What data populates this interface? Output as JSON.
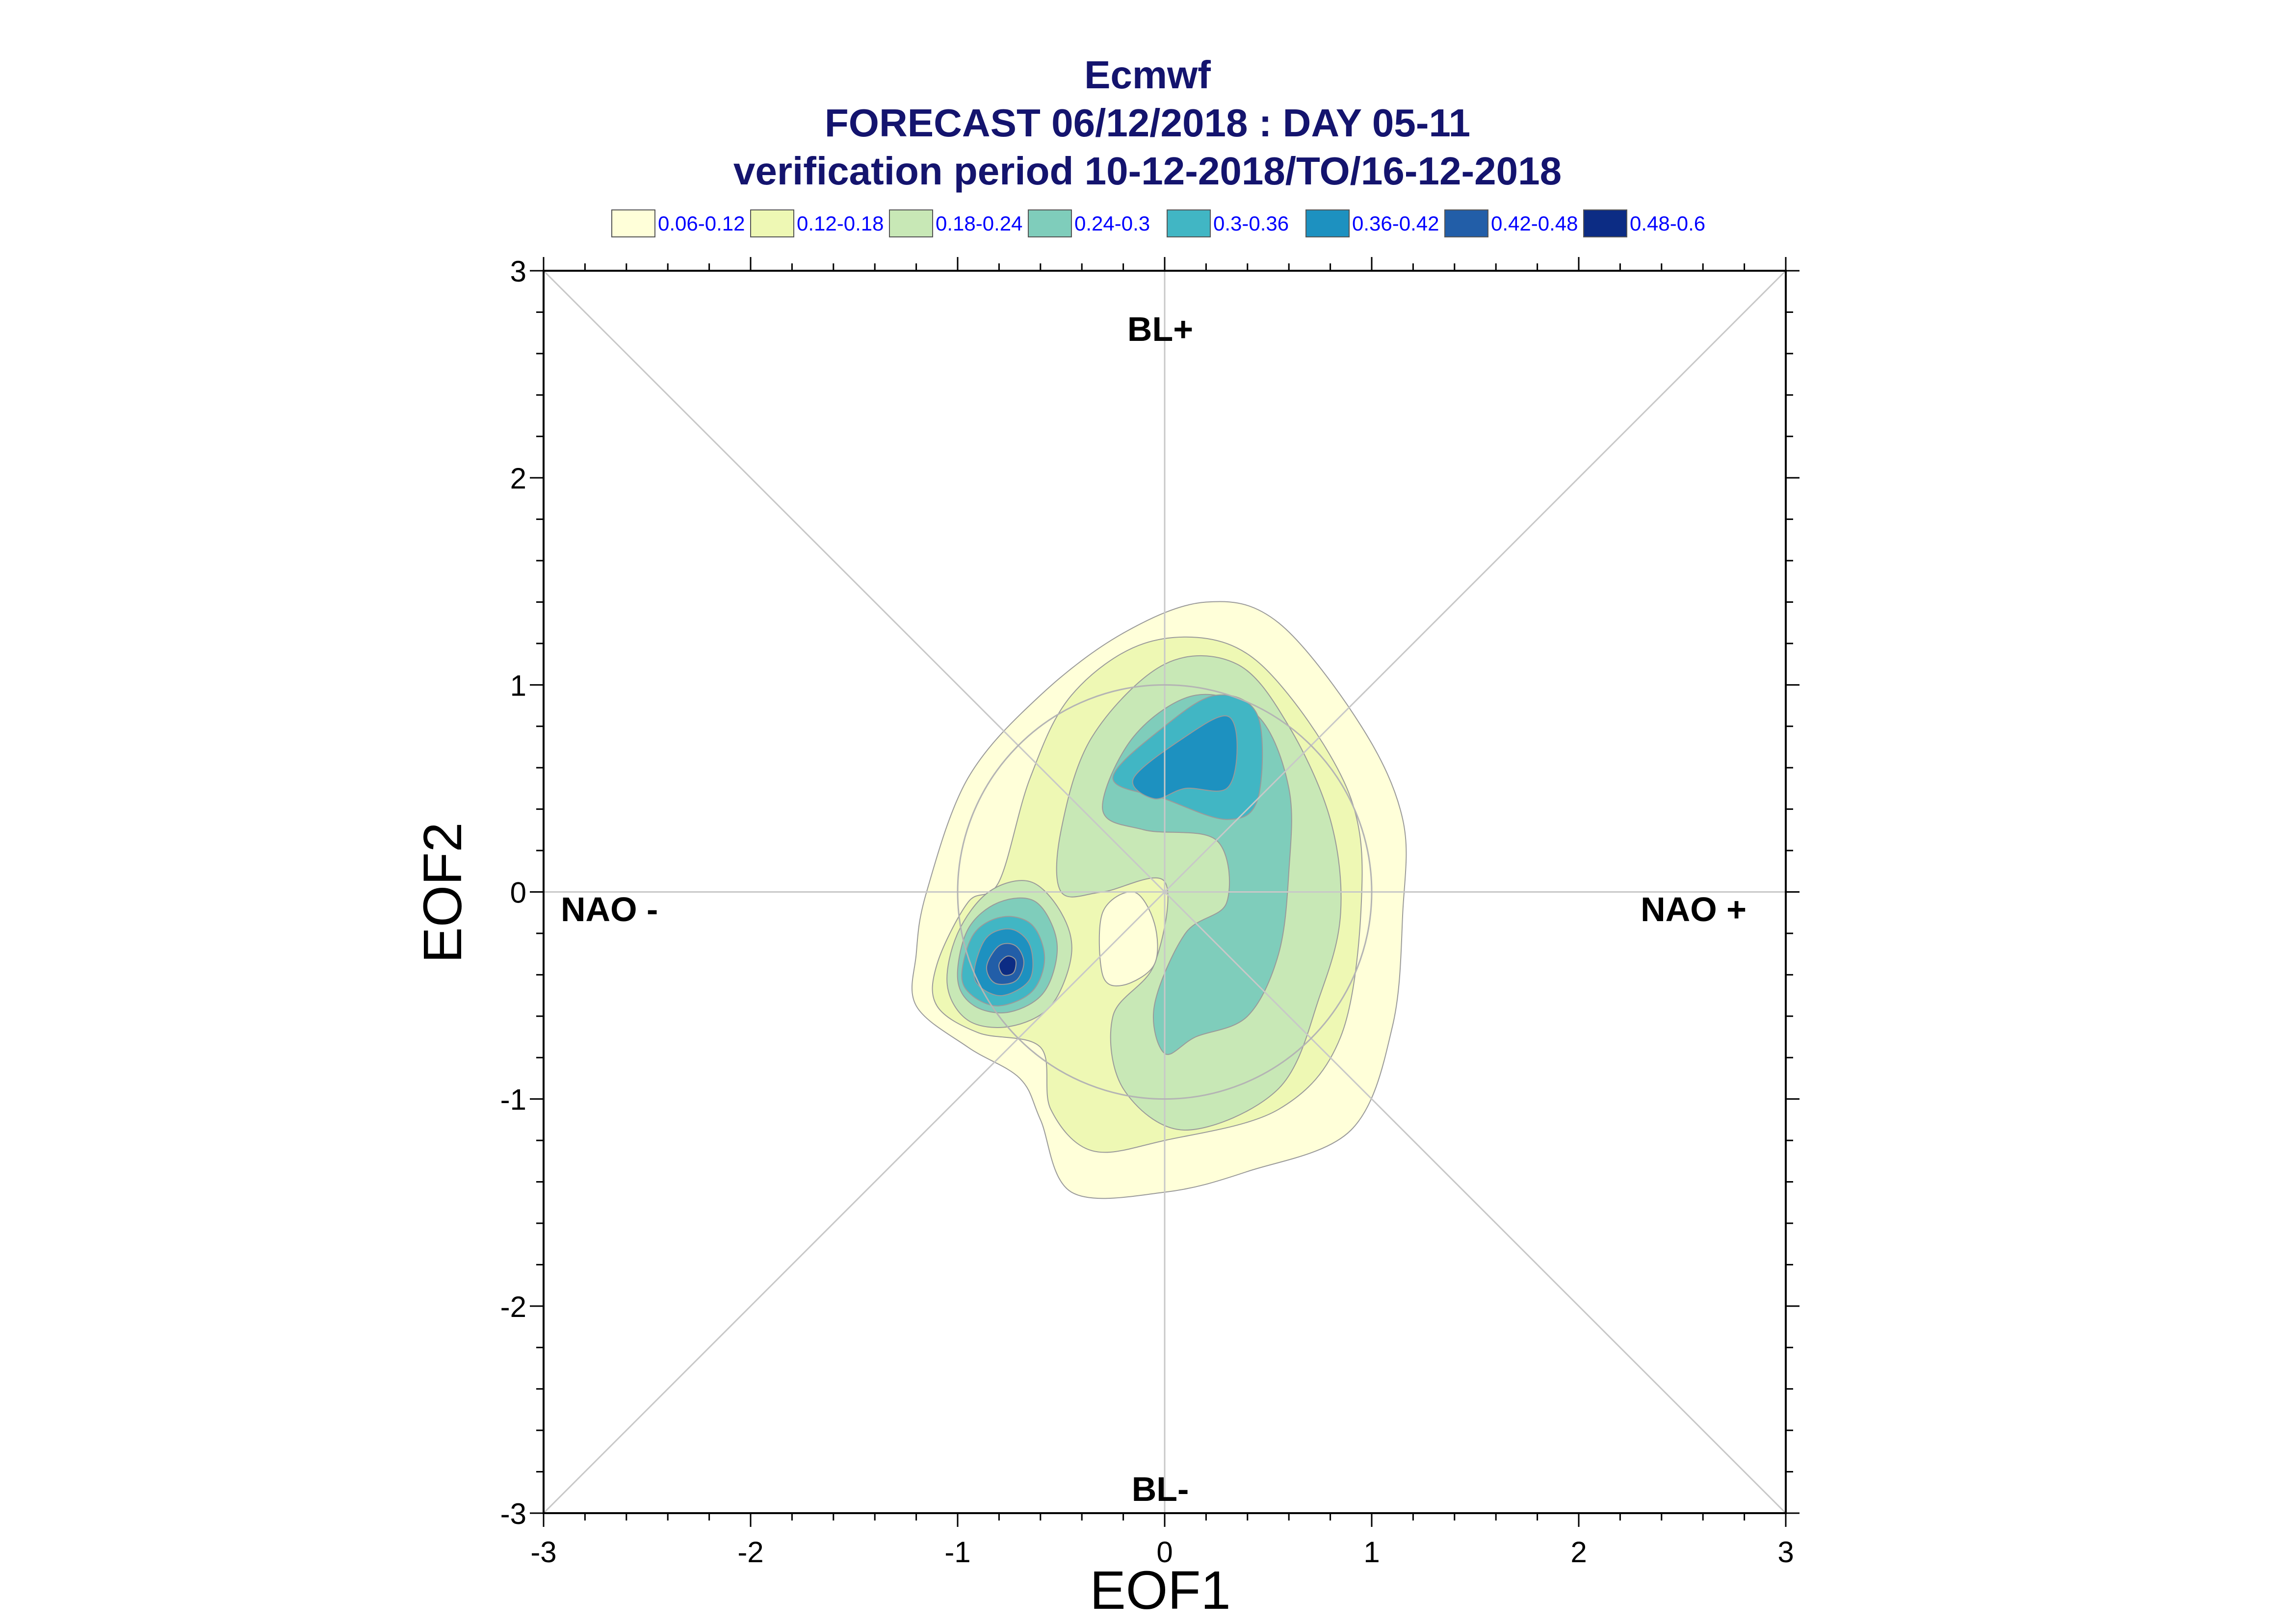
{
  "title": {
    "line1": "Ecmwf",
    "line2": "FORECAST 06/12/2018 : DAY 05-11",
    "line3": "verification period 10-12-2018/TO/16-12-2018"
  },
  "legend": [
    {
      "label": "0.06-0.12",
      "color": "#ffffd9"
    },
    {
      "label": "0.12-0.18",
      "color": "#eef8b4"
    },
    {
      "label": "0.18-0.24",
      "color": "#c8e8b6"
    },
    {
      "label": "0.24-0.3",
      "color": "#7fcdbb"
    },
    {
      "label": "0.3-0.36",
      "color": "#41b6c4"
    },
    {
      "label": "0.36-0.42",
      "color": "#1d91c0"
    },
    {
      "label": "0.42-0.48",
      "color": "#225ea8"
    },
    {
      "label": "0.48-0.6",
      "color": "#0c2c84"
    }
  ],
  "regimes": {
    "top": "BL+",
    "bottom": "BL-",
    "left": "NAO -",
    "right": "NAO +"
  },
  "chart_data": {
    "type": "contour",
    "xlabel": "EOF1",
    "ylabel": "EOF2",
    "xlim": [
      -3,
      3
    ],
    "ylim": [
      -3,
      3
    ],
    "xticks": [
      "-3",
      "-2",
      "-1",
      "0",
      "1",
      "2",
      "3"
    ],
    "yticks": [
      "-3",
      "-2",
      "-1",
      "0",
      "1",
      "2",
      "3"
    ],
    "reference_circle_radius": 1,
    "diagonals": true,
    "levels": [
      0.06,
      0.12,
      0.18,
      0.24,
      0.3,
      0.36,
      0.42,
      0.48,
      0.6
    ],
    "density_maxima": [
      {
        "x": 0.2,
        "y": 0.65,
        "level": "0.36-0.42"
      },
      {
        "x": -0.78,
        "y": -0.35,
        "level": "0.48-0.6"
      }
    ],
    "contours": [
      {
        "level": "0.06-0.12",
        "color": "#ffffd9",
        "points": [
          [
            -1.2,
            -0.3
          ],
          [
            -1.15,
            0
          ],
          [
            -0.95,
            0.55
          ],
          [
            -0.6,
            0.95
          ],
          [
            -0.2,
            1.25
          ],
          [
            0.2,
            1.4
          ],
          [
            0.55,
            1.3
          ],
          [
            0.95,
            0.8
          ],
          [
            1.15,
            0.35
          ],
          [
            1.15,
            -0.1
          ],
          [
            1.1,
            -0.65
          ],
          [
            0.9,
            -1.15
          ],
          [
            0.4,
            -1.35
          ],
          [
            0.0,
            -1.45
          ],
          [
            -0.45,
            -1.45
          ],
          [
            -0.6,
            -1.1
          ],
          [
            -0.7,
            -0.9
          ],
          [
            -0.95,
            -0.75
          ],
          [
            -1.2,
            -0.55
          ]
        ]
      },
      {
        "level": "0.12-0.18",
        "color": "#eef8b4",
        "points": [
          [
            -1.1,
            -0.35
          ],
          [
            -0.95,
            -0.05
          ],
          [
            -0.8,
            0.05
          ],
          [
            -0.65,
            0.55
          ],
          [
            -0.45,
            0.95
          ],
          [
            -0.1,
            1.2
          ],
          [
            0.3,
            1.2
          ],
          [
            0.6,
            0.95
          ],
          [
            0.9,
            0.45
          ],
          [
            0.95,
            -0.05
          ],
          [
            0.85,
            -0.7
          ],
          [
            0.55,
            -1.05
          ],
          [
            0.0,
            -1.2
          ],
          [
            -0.35,
            -1.25
          ],
          [
            -0.55,
            -1.05
          ],
          [
            -0.6,
            -0.75
          ],
          [
            -0.9,
            -0.68
          ],
          [
            -1.1,
            -0.55
          ]
        ]
      },
      {
        "level": "0.18-0.24",
        "color": "#c8e8b6",
        "points": [
          [
            -0.5,
            0.3
          ],
          [
            -0.35,
            0.75
          ],
          [
            0.0,
            1.1
          ],
          [
            0.35,
            1.1
          ],
          [
            0.6,
            0.8
          ],
          [
            0.8,
            0.35
          ],
          [
            0.85,
            -0.1
          ],
          [
            0.75,
            -0.5
          ],
          [
            0.55,
            -0.95
          ],
          [
            0.1,
            -1.15
          ],
          [
            -0.2,
            -0.95
          ],
          [
            -0.25,
            -0.6
          ],
          [
            -0.05,
            -0.35
          ],
          [
            0.0,
            0.05
          ],
          [
            -0.3,
            0.0
          ],
          [
            -0.5,
            0.0
          ]
        ]
      },
      {
        "level": "0.24-0.3",
        "color": "#7fcdbb",
        "points": [
          [
            -0.3,
            0.4
          ],
          [
            -0.15,
            0.75
          ],
          [
            0.15,
            0.95
          ],
          [
            0.45,
            0.85
          ],
          [
            0.6,
            0.5
          ],
          [
            0.6,
            0.1
          ],
          [
            0.55,
            -0.3
          ],
          [
            0.4,
            -0.6
          ],
          [
            0.15,
            -0.7
          ],
          [
            0.0,
            -0.78
          ],
          [
            -0.05,
            -0.55
          ],
          [
            0.1,
            -0.2
          ],
          [
            0.3,
            -0.05
          ],
          [
            0.25,
            0.25
          ],
          [
            -0.1,
            0.3
          ]
        ]
      },
      {
        "level": "0.3-0.36",
        "color": "#41b6c4",
        "points": [
          [
            -0.25,
            0.55
          ],
          [
            0.0,
            0.8
          ],
          [
            0.25,
            0.95
          ],
          [
            0.45,
            0.85
          ],
          [
            0.45,
            0.45
          ],
          [
            0.3,
            0.35
          ],
          [
            0.0,
            0.45
          ]
        ]
      },
      {
        "level": "0.36-0.42",
        "color": "#1d91c0",
        "points": [
          [
            -0.15,
            0.55
          ],
          [
            0.1,
            0.75
          ],
          [
            0.3,
            0.85
          ],
          [
            0.35,
            0.7
          ],
          [
            0.3,
            0.5
          ],
          [
            0.1,
            0.5
          ],
          [
            -0.05,
            0.45
          ]
        ]
      },
      {
        "level": "0.06-0.12",
        "color": "#ffffd9",
        "points": [
          [
            -0.3,
            -0.4
          ],
          [
            -0.3,
            -0.1
          ],
          [
            -0.15,
            0.0
          ],
          [
            -0.05,
            -0.15
          ],
          [
            -0.05,
            -0.35
          ],
          [
            -0.2,
            -0.45
          ]
        ]
      },
      {
        "level": "0.18-0.24",
        "color": "#c8e8b6",
        "points": [
          [
            -1.05,
            -0.45
          ],
          [
            -1.0,
            -0.2
          ],
          [
            -0.85,
            -0.0
          ],
          [
            -0.65,
            0.05
          ],
          [
            -0.5,
            -0.1
          ],
          [
            -0.45,
            -0.3
          ],
          [
            -0.55,
            -0.55
          ],
          [
            -0.75,
            -0.65
          ],
          [
            -0.95,
            -0.62
          ]
        ]
      },
      {
        "level": "0.24-0.3",
        "color": "#7fcdbb",
        "points": [
          [
            -1.0,
            -0.42
          ],
          [
            -0.95,
            -0.18
          ],
          [
            -0.8,
            -0.05
          ],
          [
            -0.62,
            -0.05
          ],
          [
            -0.52,
            -0.25
          ],
          [
            -0.58,
            -0.48
          ],
          [
            -0.75,
            -0.58
          ],
          [
            -0.92,
            -0.55
          ]
        ]
      },
      {
        "level": "0.3-0.36",
        "color": "#41b6c4",
        "points": [
          [
            -0.98,
            -0.4
          ],
          [
            -0.92,
            -0.2
          ],
          [
            -0.78,
            -0.12
          ],
          [
            -0.64,
            -0.16
          ],
          [
            -0.58,
            -0.32
          ],
          [
            -0.64,
            -0.48
          ],
          [
            -0.8,
            -0.55
          ],
          [
            -0.93,
            -0.5
          ]
        ]
      },
      {
        "level": "0.36-0.42",
        "color": "#1d91c0",
        "points": [
          [
            -0.92,
            -0.38
          ],
          [
            -0.86,
            -0.22
          ],
          [
            -0.74,
            -0.18
          ],
          [
            -0.65,
            -0.26
          ],
          [
            -0.65,
            -0.42
          ],
          [
            -0.78,
            -0.5
          ],
          [
            -0.89,
            -0.46
          ]
        ]
      },
      {
        "level": "0.42-0.48",
        "color": "#225ea8",
        "points": [
          [
            -0.86,
            -0.36
          ],
          [
            -0.8,
            -0.26
          ],
          [
            -0.72,
            -0.26
          ],
          [
            -0.68,
            -0.34
          ],
          [
            -0.72,
            -0.43
          ],
          [
            -0.82,
            -0.44
          ]
        ]
      },
      {
        "level": "0.48-0.6",
        "color": "#0c2c84",
        "points": [
          [
            -0.8,
            -0.35
          ],
          [
            -0.76,
            -0.31
          ],
          [
            -0.72,
            -0.33
          ],
          [
            -0.73,
            -0.39
          ],
          [
            -0.78,
            -0.4
          ]
        ]
      }
    ]
  }
}
